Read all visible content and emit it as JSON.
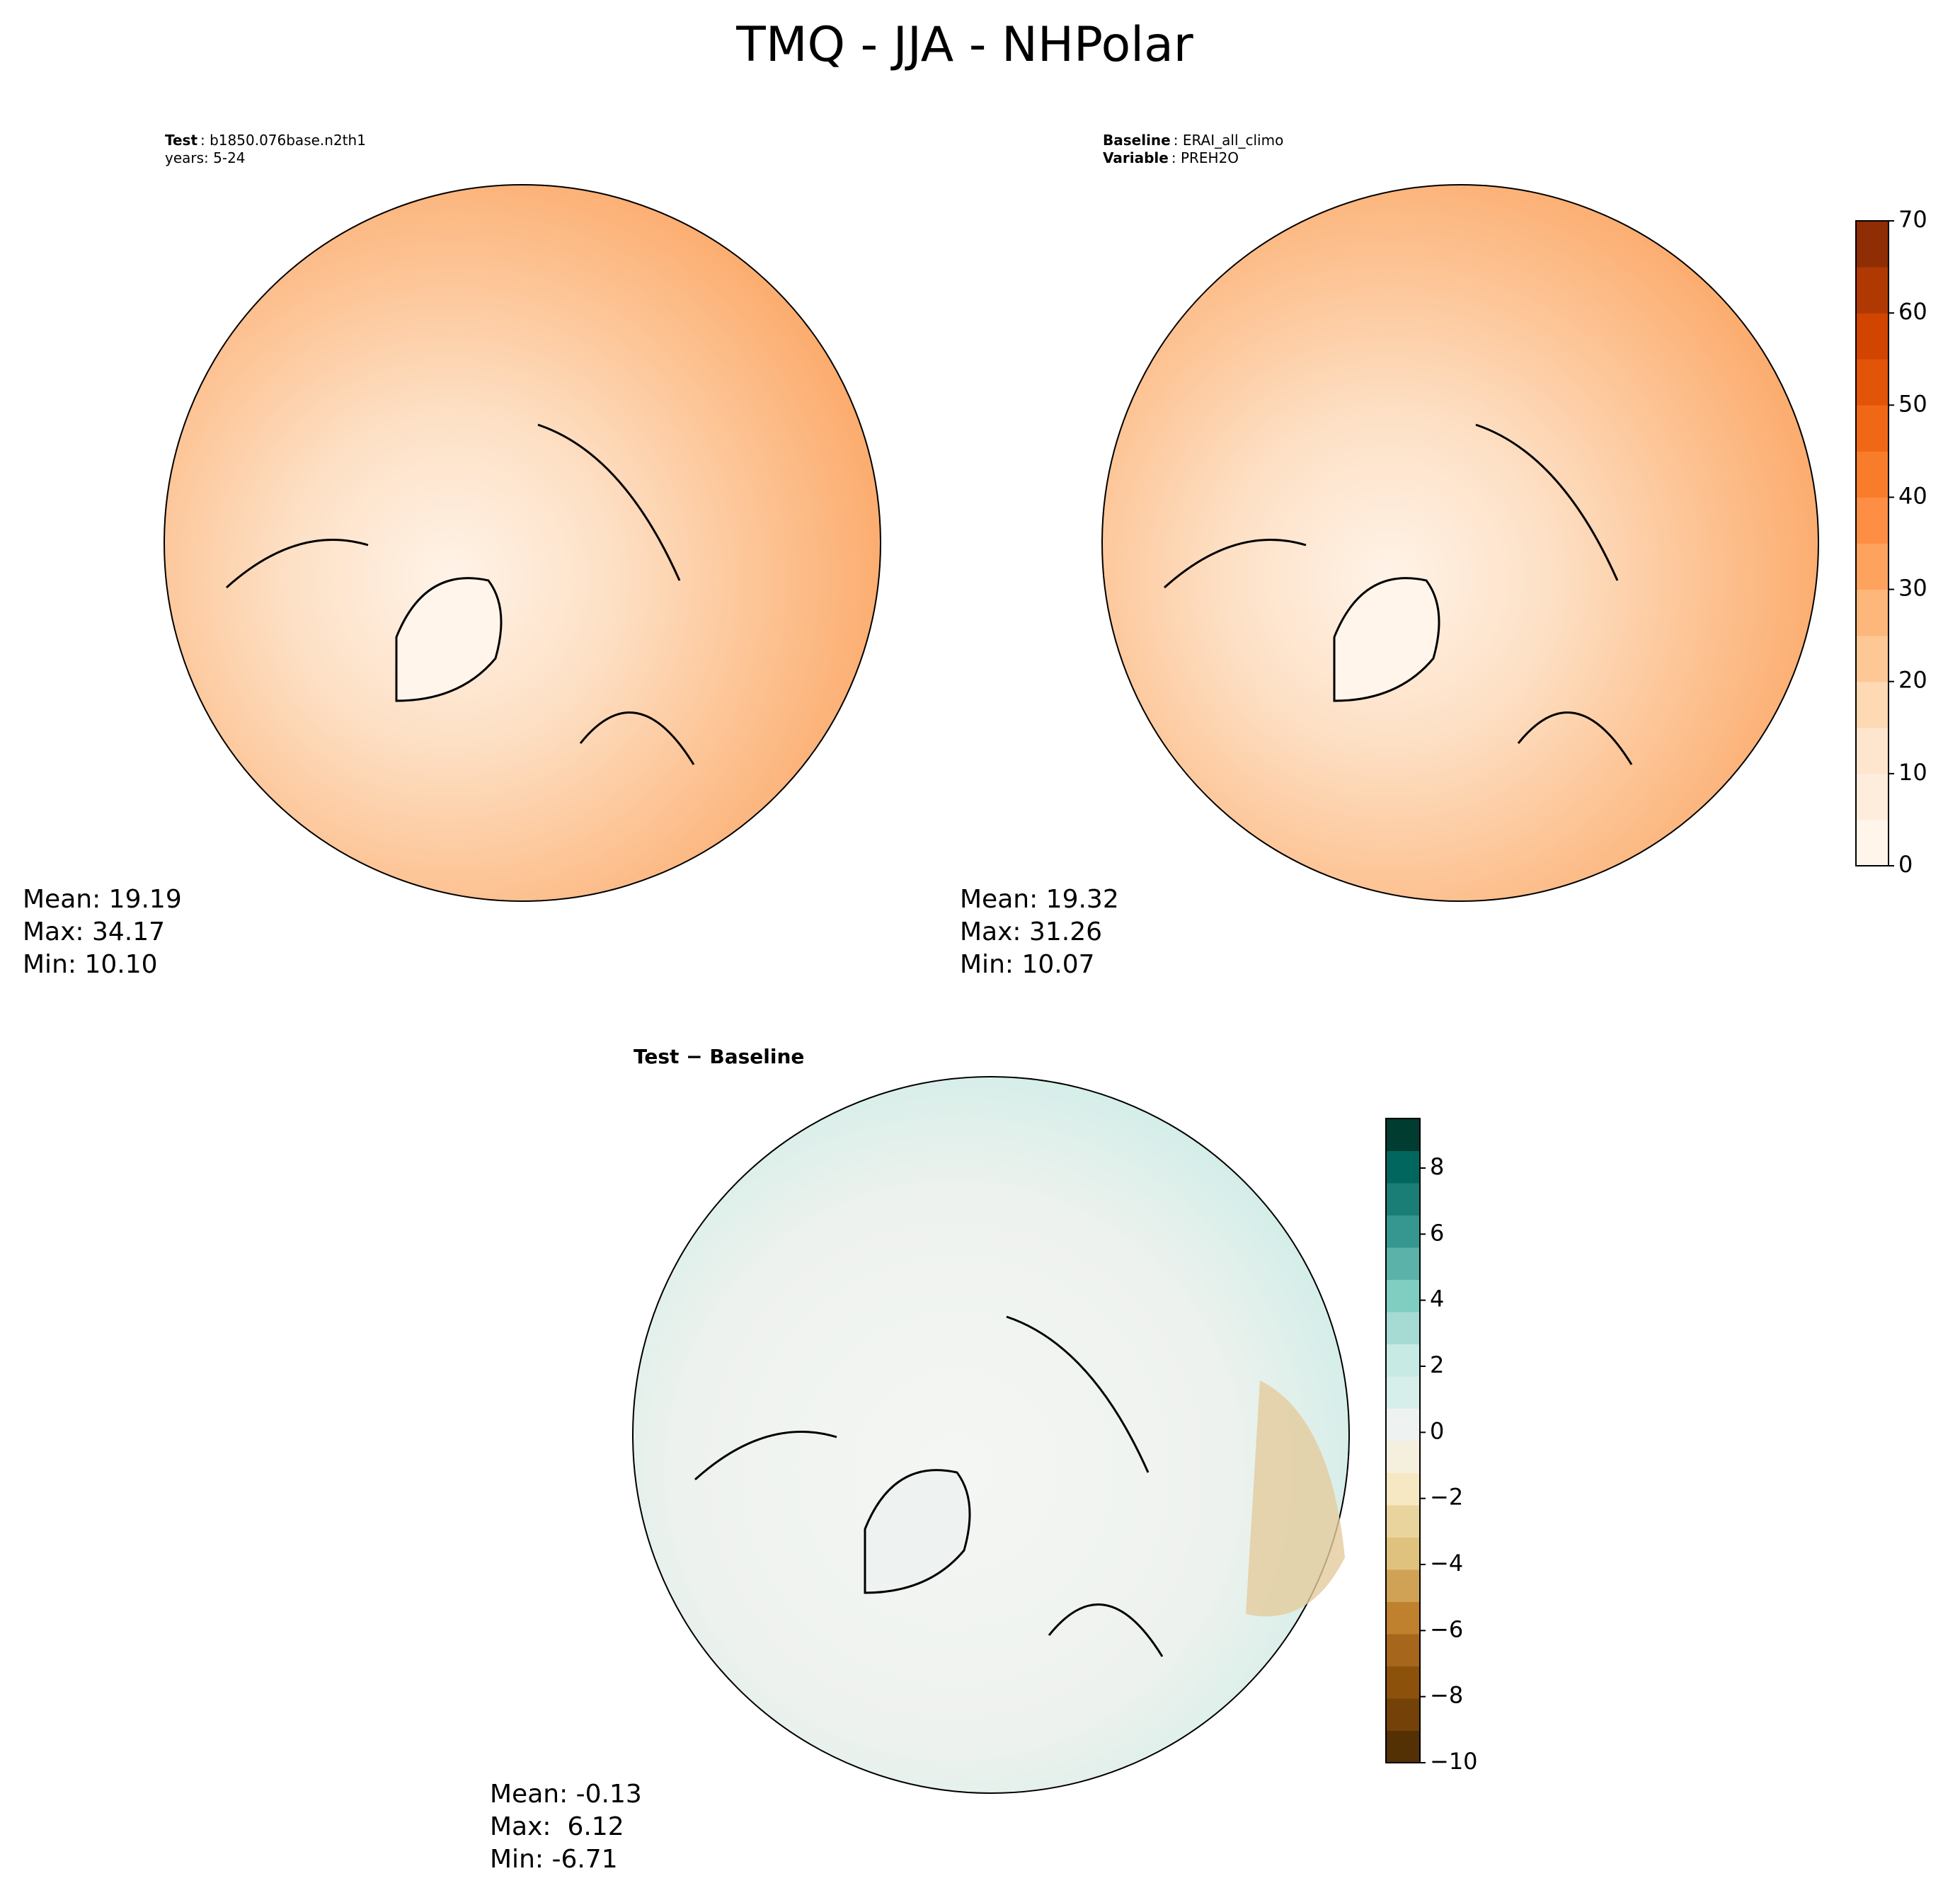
{
  "title": "TMQ - JJA - NHPolar",
  "panels": [
    {
      "header": [
        {
          "label": "Test",
          "text": ": b1850.076base.n2th1"
        },
        {
          "text": "years: 5-24"
        }
      ],
      "stats": [
        "Mean: 19.19",
        "Max: 34.17",
        "Min: 10.10"
      ]
    },
    {
      "header": [
        {
          "label": "Baseline",
          "text": ": ERAI_all_climo"
        },
        {
          "label": "Variable",
          "text": ": PREH2O"
        }
      ],
      "stats": [
        "Mean: 19.32",
        "Max: 31.26",
        "Min: 10.07"
      ]
    },
    {
      "header": [
        {
          "label": "Test − Baseline"
        }
      ],
      "stats": [
        "Mean: -0.13",
        "Max:  6.12",
        "Min: -6.71"
      ]
    }
  ],
  "colorbars": [
    {
      "lim": [
        0,
        70
      ],
      "ticks": [
        0,
        10,
        20,
        30,
        40,
        50,
        60,
        70
      ],
      "colors": [
        "#fff5eb",
        "#feeddc",
        "#fee6ce",
        "#fdd9b4",
        "#fdc895",
        "#fdb77a",
        "#fda35d",
        "#fd8e43",
        "#f87c2a",
        "#f06816",
        "#e25509",
        "#d14501",
        "#b03903",
        "#8f2e04"
      ]
    },
    {
      "lim": [
        -10,
        9.5
      ],
      "ticks": [
        {
          "value": -10,
          "label": "−10"
        },
        {
          "value": -8,
          "label": "−8"
        },
        {
          "value": -6,
          "label": "−6"
        },
        {
          "value": -4,
          "label": "−4"
        },
        {
          "value": -2,
          "label": "−2"
        },
        0,
        2,
        4,
        6,
        8
      ],
      "colors": [
        "#543005",
        "#744208",
        "#8c510a",
        "#a6661b",
        "#bf812d",
        "#cfa256",
        "#dfc27d",
        "#ead49e",
        "#f6e8c3",
        "#f5efdd",
        "#eef3f1",
        "#d7efeb",
        "#c7eae5",
        "#a5dbd3",
        "#80cdc1",
        "#5ab2a8",
        "#35978f",
        "#1b7e76",
        "#01665e",
        "#003c30"
      ]
    }
  ]
}
